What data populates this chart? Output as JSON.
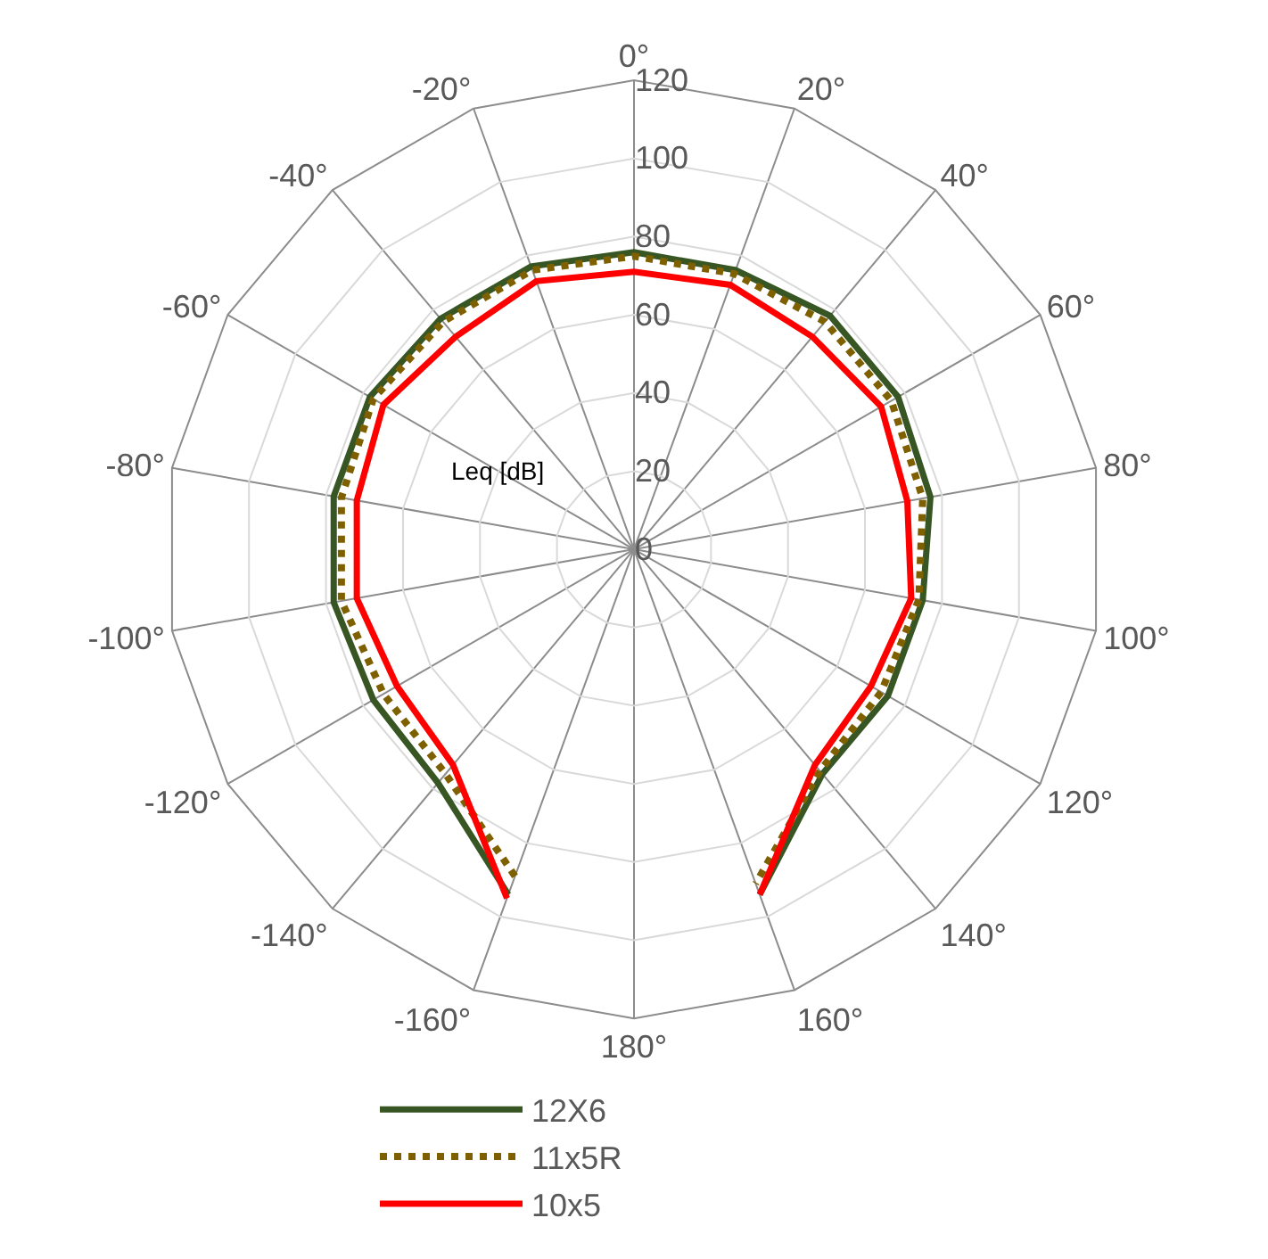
{
  "chart_data": {
    "type": "radar",
    "ylabel": "Leq [dB]",
    "categories": [
      "0°",
      "20°",
      "40°",
      "60°",
      "80°",
      "100°",
      "120°",
      "140°",
      "160°",
      "180°",
      "-160°",
      "-140°",
      "-120°",
      "-100°",
      "-80°",
      "-60°",
      "-40°",
      "-20°"
    ],
    "ylim": [
      0,
      120
    ],
    "yticks": [
      0,
      20,
      40,
      60,
      80,
      100,
      120
    ],
    "grid": true,
    "legend": "bottom",
    "marker": "none",
    "series": [
      {
        "name": "12X6",
        "color": "#375623",
        "line_style": "solid",
        "values": [
          76,
          76,
          78,
          78,
          77,
          75,
          75,
          75,
          94,
          null,
          94,
          78,
          77,
          78,
          78,
          78,
          77,
          77
        ]
      },
      {
        "name": "11x5R",
        "color": "#7f6000",
        "line_style": "dotted",
        "values": [
          75,
          75,
          76,
          76,
          75,
          74,
          73,
          74,
          91,
          null,
          89,
          75,
          74,
          76,
          76,
          77,
          76,
          76
        ]
      },
      {
        "name": "10x5",
        "color": "#ff0000",
        "line_style": "solid",
        "values": [
          71,
          72,
          71,
          73,
          71,
          72,
          70,
          72,
          94,
          null,
          95,
          72,
          70,
          72,
          72,
          74,
          71,
          73
        ]
      }
    ]
  }
}
